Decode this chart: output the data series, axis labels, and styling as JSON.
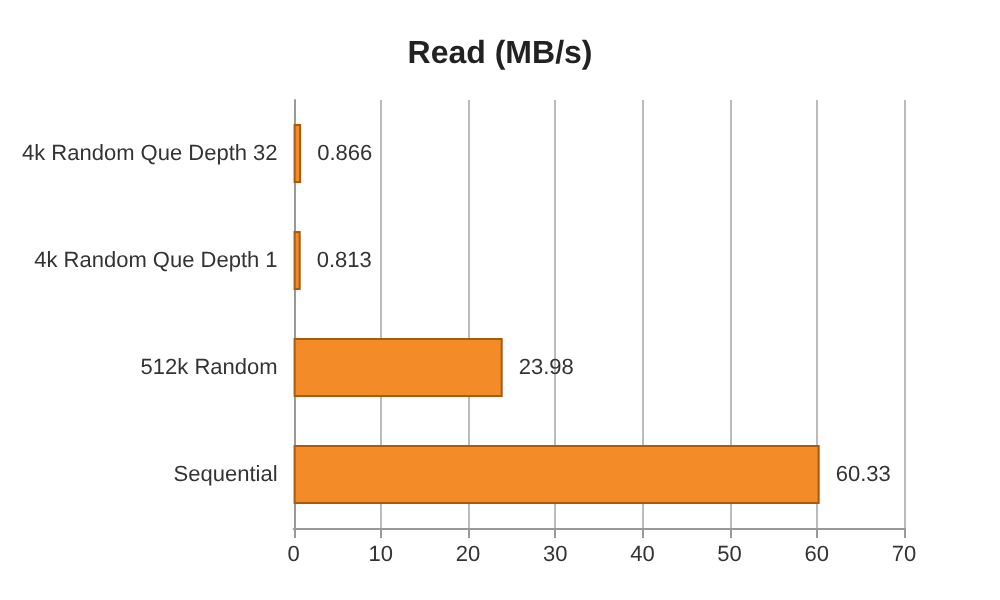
{
  "chart_data": {
    "type": "bar",
    "orientation": "horizontal",
    "title": "Read (MB/s)",
    "categories": [
      "4k Random Que Depth 32",
      "4k Random Que Depth 1",
      "512k Random",
      "Sequential"
    ],
    "values": [
      0.866,
      0.813,
      23.98,
      60.33
    ],
    "color": "#f28b28",
    "xlim": [
      0,
      70
    ],
    "xticks": [
      0,
      10,
      20,
      30,
      40,
      50,
      60,
      70
    ],
    "grid": "x",
    "data_labels": true
  }
}
